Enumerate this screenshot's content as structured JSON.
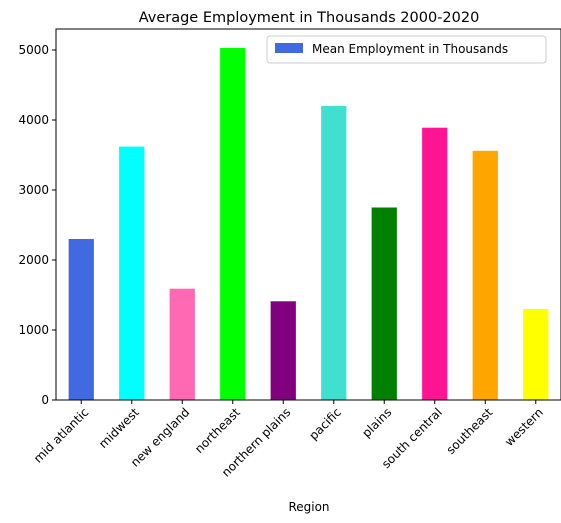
{
  "chart_data": {
    "type": "bar",
    "title": "Average Employment in Thousands 2000-2020",
    "xlabel": "Region",
    "ylabel": "",
    "ylim": [
      0,
      5300
    ],
    "yticks": [
      0,
      1000,
      2000,
      3000,
      4000,
      5000
    ],
    "categories": [
      "mid atlantic",
      "midwest",
      "new england",
      "northeast",
      "northern plains",
      "pacific",
      "plains",
      "south central",
      "southeast",
      "western"
    ],
    "series": [
      {
        "name": "Mean Employment in Thousands",
        "legend_color": "#4169e1",
        "values": [
          2300,
          3620,
          1590,
          5030,
          1410,
          4200,
          2750,
          3890,
          3560,
          1300
        ],
        "colors": [
          "#4169e1",
          "#00ffff",
          "#ff69b4",
          "#00ff00",
          "#800080",
          "#40e0d0",
          "#008000",
          "#ff1493",
          "#ffa500",
          "#ffff00"
        ]
      }
    ],
    "grid": false,
    "legend_position": "top-right"
  }
}
